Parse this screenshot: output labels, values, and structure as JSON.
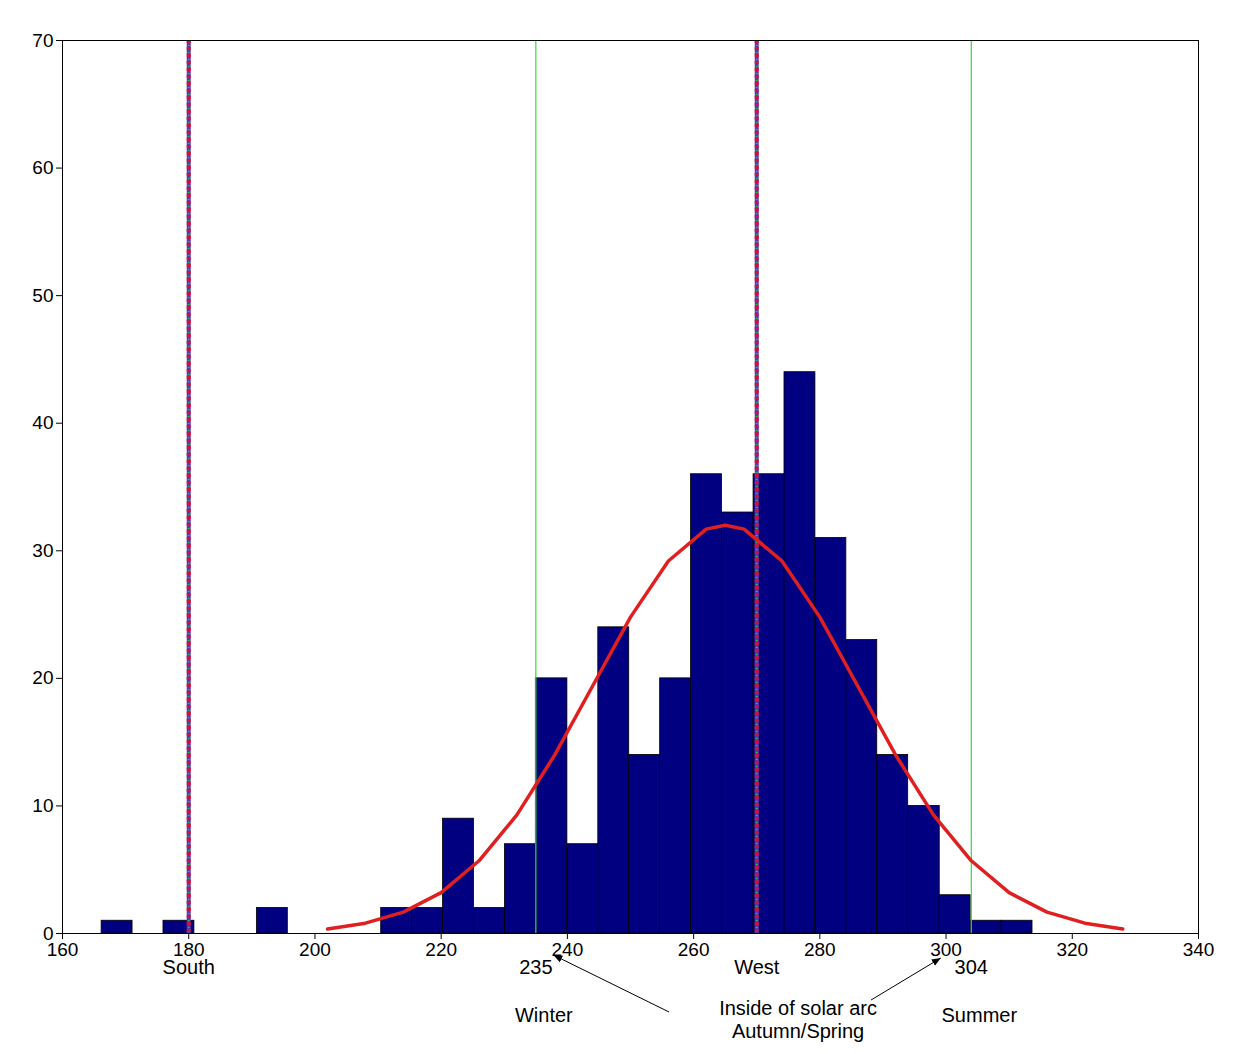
{
  "chart_data": {
    "type": "histogram",
    "bins": [
      166.2,
      171.1,
      176.0,
      180.9,
      185.9,
      190.8,
      195.7,
      200.6,
      205.5,
      210.5,
      215.4,
      220.3,
      225.2,
      230.1,
      235.0,
      240.0,
      244.9,
      249.8,
      254.7,
      259.6,
      264.5,
      269.5,
      274.4,
      279.3,
      284.2,
      289.1,
      294.0,
      299.0,
      303.9,
      308.8,
      313.7
    ],
    "values": [
      1,
      0,
      1,
      0,
      0,
      2,
      0,
      0,
      0,
      2,
      2,
      9,
      2,
      7,
      20,
      7,
      24,
      14,
      20,
      36,
      33,
      36,
      44,
      31,
      23,
      14,
      10,
      3,
      1,
      1
    ],
    "color": "#000080",
    "curve": {
      "type": "line",
      "color": "#e02020",
      "x": [
        202,
        208,
        214,
        220,
        226,
        232,
        238,
        244,
        250,
        256,
        262,
        265,
        268,
        274,
        280,
        286,
        292,
        298,
        304,
        310,
        316,
        322,
        328
      ],
      "values": [
        0.36,
        0.81,
        1.68,
        3.2,
        5.7,
        9.3,
        14.0,
        19.4,
        24.8,
        29.2,
        31.7,
        32,
        31.7,
        29.2,
        24.8,
        19.4,
        14.0,
        9.3,
        5.7,
        3.2,
        1.68,
        0.81,
        0.36
      ]
    },
    "reference_lines": [
      {
        "x": 180,
        "label": "South",
        "color": "#5a3aa0",
        "line_style": "dashed"
      },
      {
        "x": 270,
        "label": "West",
        "color": "#5a3aa0",
        "line_style": "dashed"
      },
      {
        "x": 235,
        "label": "235",
        "season": "Winter",
        "color": "#33dd33",
        "line_style": "solid"
      },
      {
        "x": 304,
        "label": "304",
        "season": "Summer",
        "color": "#33dd33",
        "line_style": "solid"
      }
    ],
    "annotation": {
      "text": [
        "Inside of solar arc",
        "Autumn/Spring"
      ]
    },
    "xlim": [
      160,
      340
    ],
    "xticks": [
      160,
      180,
      200,
      220,
      240,
      260,
      280,
      300,
      320,
      340
    ],
    "ylim": [
      0,
      70
    ],
    "yticks": [
      0,
      10,
      20,
      30,
      40,
      50,
      60,
      70
    ],
    "grid": false
  }
}
